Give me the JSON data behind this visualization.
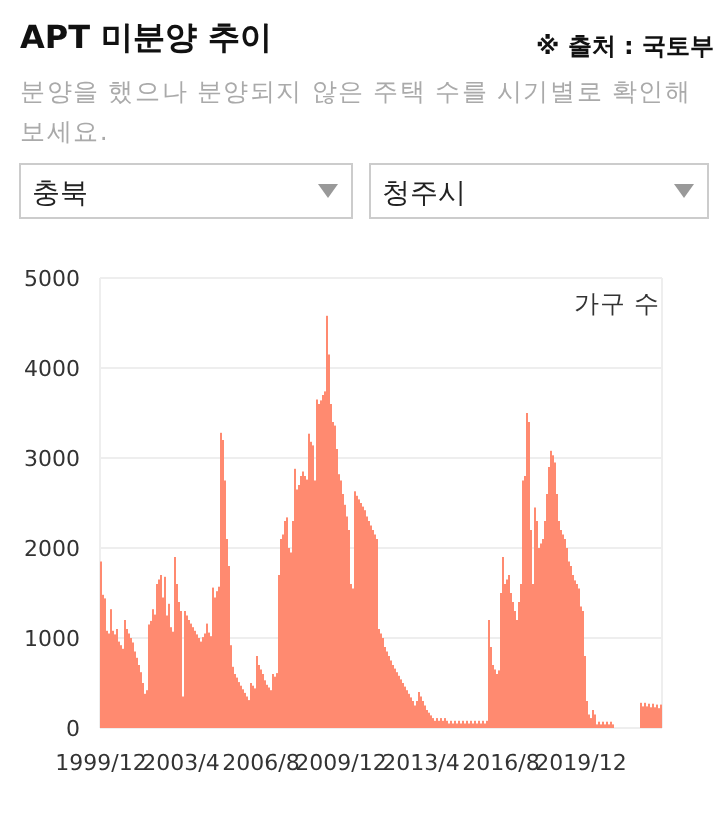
{
  "chart_data": {
    "type": "bar",
    "title": "APT 미분양 추이",
    "subtitle": "분양을 했으나 분양되지 않은 주택 수를 시기별로 확인해보세요.",
    "ylabel": "가구 수",
    "annotations": [
      "※ 출처 : 국토부",
      "충북",
      "청주시"
    ],
    "categories": [
      "1999/12",
      null,
      null,
      null,
      null,
      null,
      null,
      null,
      null,
      null,
      null,
      null,
      null,
      null,
      null,
      null,
      null,
      null,
      null,
      null,
      null,
      null,
      null,
      null,
      null,
      null,
      null,
      null,
      null,
      null,
      null,
      null,
      null,
      null,
      null,
      null,
      null,
      null,
      null,
      null,
      "2003/4",
      null,
      null,
      null,
      null,
      null,
      null,
      null,
      null,
      null,
      null,
      null,
      null,
      null,
      null,
      null,
      null,
      null,
      null,
      null,
      null,
      null,
      null,
      null,
      null,
      null,
      null,
      null,
      null,
      null,
      null,
      null,
      null,
      null,
      null,
      null,
      null,
      null,
      null,
      null,
      "2006/8",
      null,
      null,
      null,
      null,
      null,
      null,
      null,
      null,
      null,
      null,
      null,
      null,
      null,
      null,
      null,
      null,
      null,
      null,
      null,
      null,
      null,
      null,
      null,
      null,
      null,
      null,
      null,
      null,
      null,
      null,
      null,
      null,
      null,
      null,
      null,
      null,
      null,
      null,
      null,
      "2009/12",
      null,
      null,
      null,
      null,
      null,
      null,
      null,
      null,
      null,
      null,
      null,
      null,
      null,
      null,
      null,
      null,
      null,
      null,
      null,
      null,
      null,
      null,
      null,
      null,
      null,
      null,
      null,
      null,
      null,
      null,
      null,
      null,
      null,
      null,
      null,
      null,
      null,
      null,
      null,
      "2013/4",
      null,
      null,
      null,
      null,
      null,
      null,
      null,
      null,
      null,
      null,
      null,
      null,
      null,
      null,
      null,
      null,
      null,
      null,
      null,
      null,
      null,
      null,
      null,
      null,
      null,
      null,
      null,
      null,
      null,
      null,
      null,
      null,
      null,
      null,
      null,
      null,
      null,
      null,
      null,
      "2016/8",
      null,
      null,
      null,
      null,
      null,
      null,
      null,
      null,
      null,
      null,
      null,
      null,
      null,
      null,
      null,
      null,
      null,
      null,
      null,
      null,
      null,
      null,
      null,
      null,
      null,
      null,
      null,
      null,
      null,
      null,
      null,
      null,
      null,
      null,
      null,
      null,
      null,
      null,
      null,
      "2019/12",
      null,
      null,
      null,
      null,
      null,
      null,
      null,
      null,
      null,
      null,
      null,
      null,
      null,
      null,
      null,
      null,
      null,
      null,
      null,
      null,
      null,
      null,
      null,
      null,
      null,
      null,
      null,
      null,
      null,
      null,
      null,
      null,
      null,
      null,
      null,
      null,
      null,
      null,
      null,
      null
    ],
    "values": [
      1850,
      1480,
      1440,
      1080,
      1050,
      1320,
      1080,
      1040,
      1100,
      960,
      920,
      880,
      1200,
      1100,
      1050,
      1000,
      950,
      850,
      780,
      700,
      620,
      500,
      380,
      420,
      1150,
      1190,
      1320,
      1260,
      1600,
      1650,
      1700,
      1450,
      1680,
      1250,
      1380,
      1120,
      1070,
      1900,
      1600,
      1400,
      1300,
      350,
      1300,
      1250,
      1200,
      1160,
      1120,
      1080,
      1040,
      1000,
      960,
      1010,
      1050,
      1160,
      1060,
      1020,
      1560,
      1450,
      1520,
      1570,
      3280,
      3200,
      2750,
      2100,
      1800,
      920,
      680,
      600,
      560,
      510,
      470,
      430,
      390,
      350,
      310,
      500,
      470,
      440,
      800,
      700,
      650,
      600,
      530,
      480,
      450,
      420,
      600,
      570,
      610,
      1700,
      2100,
      2150,
      2300,
      2340,
      2000,
      1950,
      2300,
      2880,
      2650,
      2700,
      2800,
      2850,
      2800,
      2760,
      3270,
      3180,
      3140,
      2750,
      3650,
      3600,
      3640,
      3700,
      3740,
      4580,
      4150,
      3600,
      3400,
      3360,
      3100,
      2820,
      2750,
      2600,
      2480,
      2350,
      2200,
      1600,
      1550,
      2630,
      2580,
      2540,
      2500,
      2460,
      2420,
      2350,
      2300,
      2250,
      2200,
      2150,
      2100,
      1100,
      1050,
      1000,
      900,
      850,
      800,
      750,
      700,
      660,
      620,
      580,
      540,
      500,
      460,
      420,
      380,
      340,
      300,
      250,
      300,
      400,
      350,
      300,
      250,
      200,
      170,
      140,
      110,
      80,
      110,
      80,
      110,
      80,
      110,
      80,
      50,
      80,
      50,
      80,
      50,
      80,
      50,
      80,
      50,
      80,
      50,
      80,
      50,
      80,
      50,
      80,
      50,
      80,
      50,
      80,
      1200,
      900,
      700,
      650,
      600,
      640,
      1500,
      1900,
      1600,
      1650,
      1700,
      1500,
      1400,
      1300,
      1200,
      1400,
      1600,
      2750,
      2800,
      3500,
      3400,
      2200,
      1600,
      2450,
      2300,
      2000,
      2050,
      2100,
      2300,
      2600,
      2900,
      3080,
      3030,
      2950,
      2600,
      2300,
      2200,
      2150,
      2100,
      2000,
      1850,
      1800,
      1700,
      1640,
      1600,
      1550,
      1350,
      1300,
      800,
      300,
      150,
      110,
      200,
      150,
      40,
      70,
      40,
      70,
      40,
      70,
      40,
      70,
      40,
      null,
      null,
      null,
      null,
      null,
      null,
      null,
      null,
      null,
      null,
      null,
      null,
      null,
      280,
      240,
      280,
      240,
      270,
      230,
      270,
      230,
      260,
      220,
      260
    ],
    "color": "#ff8a70",
    "ylim": [
      0,
      5000
    ],
    "yticks": [
      0,
      1000,
      2000,
      3000,
      4000,
      5000
    ],
    "grid": "y"
  }
}
